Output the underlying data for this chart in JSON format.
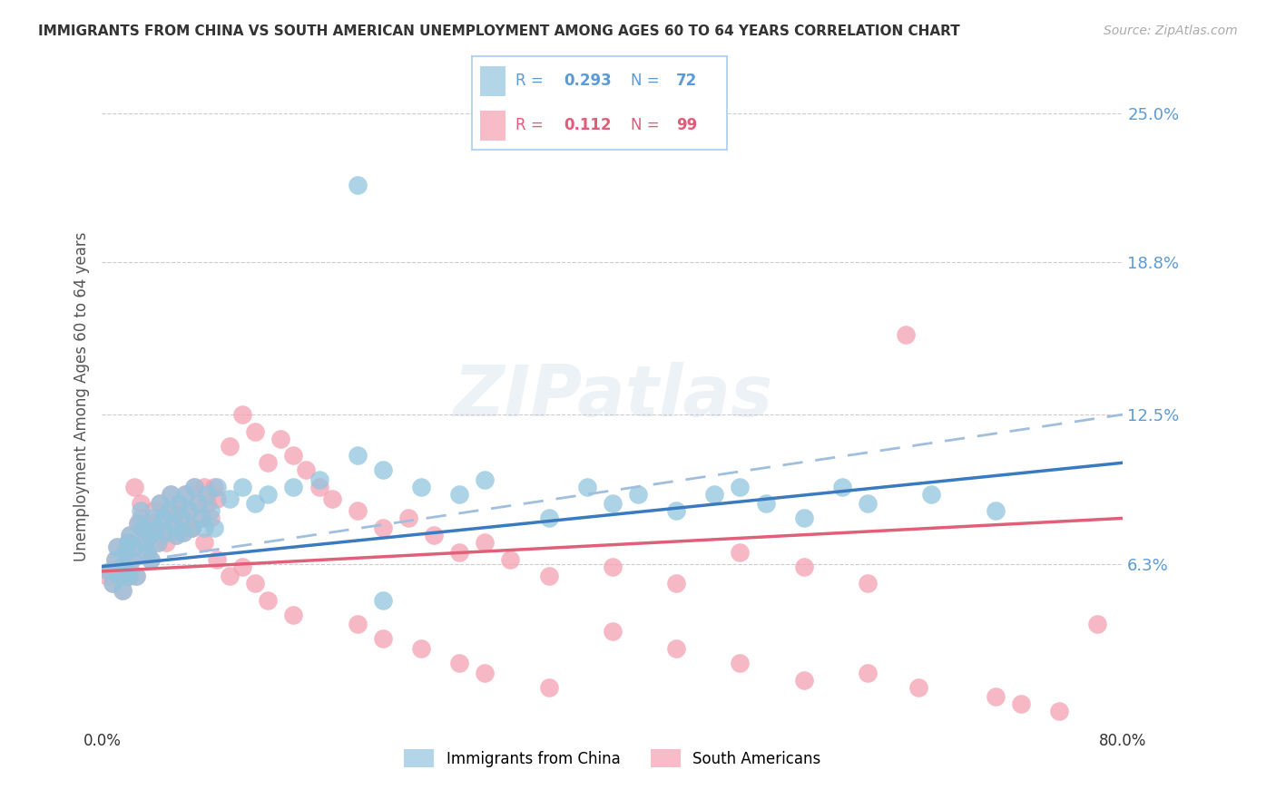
{
  "title": "IMMIGRANTS FROM CHINA VS SOUTH AMERICAN UNEMPLOYMENT AMONG AGES 60 TO 64 YEARS CORRELATION CHART",
  "source": "Source: ZipAtlas.com",
  "ylabel": "Unemployment Among Ages 60 to 64 years",
  "y_tick_labels_right": [
    "6.3%",
    "12.5%",
    "18.8%",
    "25.0%"
  ],
  "y_tick_values_right": [
    0.063,
    0.125,
    0.188,
    0.25
  ],
  "xlim": [
    0.0,
    0.8
  ],
  "ylim": [
    -0.005,
    0.27
  ],
  "legend_label_blue": "Immigrants from China",
  "legend_label_pink": "South Americans",
  "blue_color": "#92c5de",
  "pink_color": "#f4a0b0",
  "trend_blue_color": "#3a7abf",
  "trend_pink_color": "#e0607a",
  "dashed_color": "#a0bedd",
  "background_color": "#ffffff",
  "grid_color": "#cccccc",
  "right_axis_color": "#5b9bd5",
  "title_color": "#333333",
  "blue_scatter_x": [
    0.005,
    0.008,
    0.01,
    0.012,
    0.014,
    0.015,
    0.016,
    0.018,
    0.019,
    0.02,
    0.021,
    0.022,
    0.023,
    0.025,
    0.027,
    0.028,
    0.03,
    0.032,
    0.033,
    0.035,
    0.037,
    0.038,
    0.04,
    0.042,
    0.044,
    0.045,
    0.048,
    0.05,
    0.052,
    0.054,
    0.056,
    0.058,
    0.06,
    0.062,
    0.064,
    0.065,
    0.068,
    0.07,
    0.072,
    0.075,
    0.078,
    0.08,
    0.082,
    0.085,
    0.088,
    0.09,
    0.1,
    0.11,
    0.12,
    0.13,
    0.15,
    0.17,
    0.2,
    0.22,
    0.25,
    0.28,
    0.3,
    0.35,
    0.38,
    0.4,
    0.42,
    0.45,
    0.48,
    0.5,
    0.52,
    0.55,
    0.58,
    0.6,
    0.65,
    0.7,
    0.2,
    0.22
  ],
  "blue_scatter_y": [
    0.06,
    0.055,
    0.065,
    0.07,
    0.058,
    0.062,
    0.052,
    0.068,
    0.06,
    0.072,
    0.058,
    0.075,
    0.065,
    0.07,
    0.058,
    0.08,
    0.085,
    0.078,
    0.072,
    0.068,
    0.075,
    0.065,
    0.082,
    0.078,
    0.072,
    0.088,
    0.082,
    0.076,
    0.085,
    0.092,
    0.08,
    0.075,
    0.088,
    0.082,
    0.076,
    0.092,
    0.085,
    0.078,
    0.095,
    0.088,
    0.082,
    0.078,
    0.092,
    0.085,
    0.078,
    0.095,
    0.09,
    0.095,
    0.088,
    0.092,
    0.095,
    0.098,
    0.108,
    0.102,
    0.095,
    0.092,
    0.098,
    0.082,
    0.095,
    0.088,
    0.092,
    0.085,
    0.092,
    0.095,
    0.088,
    0.082,
    0.095,
    0.088,
    0.092,
    0.085,
    0.22,
    0.048
  ],
  "pink_scatter_x": [
    0.004,
    0.006,
    0.008,
    0.01,
    0.012,
    0.014,
    0.015,
    0.016,
    0.018,
    0.019,
    0.02,
    0.021,
    0.022,
    0.023,
    0.025,
    0.027,
    0.028,
    0.03,
    0.032,
    0.033,
    0.035,
    0.037,
    0.038,
    0.04,
    0.042,
    0.044,
    0.045,
    0.048,
    0.05,
    0.052,
    0.054,
    0.056,
    0.058,
    0.06,
    0.062,
    0.064,
    0.065,
    0.068,
    0.07,
    0.072,
    0.075,
    0.078,
    0.08,
    0.082,
    0.085,
    0.088,
    0.09,
    0.1,
    0.11,
    0.12,
    0.13,
    0.14,
    0.15,
    0.16,
    0.17,
    0.18,
    0.2,
    0.22,
    0.24,
    0.26,
    0.28,
    0.3,
    0.32,
    0.35,
    0.4,
    0.45,
    0.5,
    0.55,
    0.6,
    0.63,
    0.025,
    0.03,
    0.04,
    0.05,
    0.06,
    0.07,
    0.08,
    0.09,
    0.1,
    0.11,
    0.12,
    0.13,
    0.15,
    0.2,
    0.22,
    0.25,
    0.28,
    0.3,
    0.35,
    0.4,
    0.45,
    0.5,
    0.55,
    0.6,
    0.64,
    0.7,
    0.72,
    0.75,
    0.78
  ],
  "pink_scatter_y": [
    0.058,
    0.06,
    0.055,
    0.065,
    0.07,
    0.058,
    0.062,
    0.052,
    0.068,
    0.06,
    0.072,
    0.058,
    0.075,
    0.065,
    0.07,
    0.058,
    0.08,
    0.082,
    0.078,
    0.072,
    0.068,
    0.075,
    0.065,
    0.085,
    0.078,
    0.072,
    0.088,
    0.082,
    0.076,
    0.085,
    0.092,
    0.08,
    0.075,
    0.088,
    0.082,
    0.076,
    0.092,
    0.085,
    0.078,
    0.095,
    0.088,
    0.082,
    0.095,
    0.088,
    0.082,
    0.095,
    0.09,
    0.112,
    0.125,
    0.118,
    0.105,
    0.115,
    0.108,
    0.102,
    0.095,
    0.09,
    0.085,
    0.078,
    0.082,
    0.075,
    0.068,
    0.072,
    0.065,
    0.058,
    0.062,
    0.055,
    0.068,
    0.062,
    0.055,
    0.158,
    0.095,
    0.088,
    0.08,
    0.072,
    0.085,
    0.078,
    0.072,
    0.065,
    0.058,
    0.062,
    0.055,
    0.048,
    0.042,
    0.038,
    0.032,
    0.028,
    0.022,
    0.018,
    0.012,
    0.035,
    0.028,
    0.022,
    0.015,
    0.018,
    0.012,
    0.008,
    0.005,
    0.002,
    0.038
  ],
  "blue_trend_x": [
    0.0,
    0.8
  ],
  "blue_trend_y_start": 0.062,
  "blue_trend_y_end": 0.105,
  "pink_trend_y_start": 0.06,
  "pink_trend_y_end": 0.082,
  "dashed_trend_y_start": 0.062,
  "dashed_trend_y_end": 0.125
}
